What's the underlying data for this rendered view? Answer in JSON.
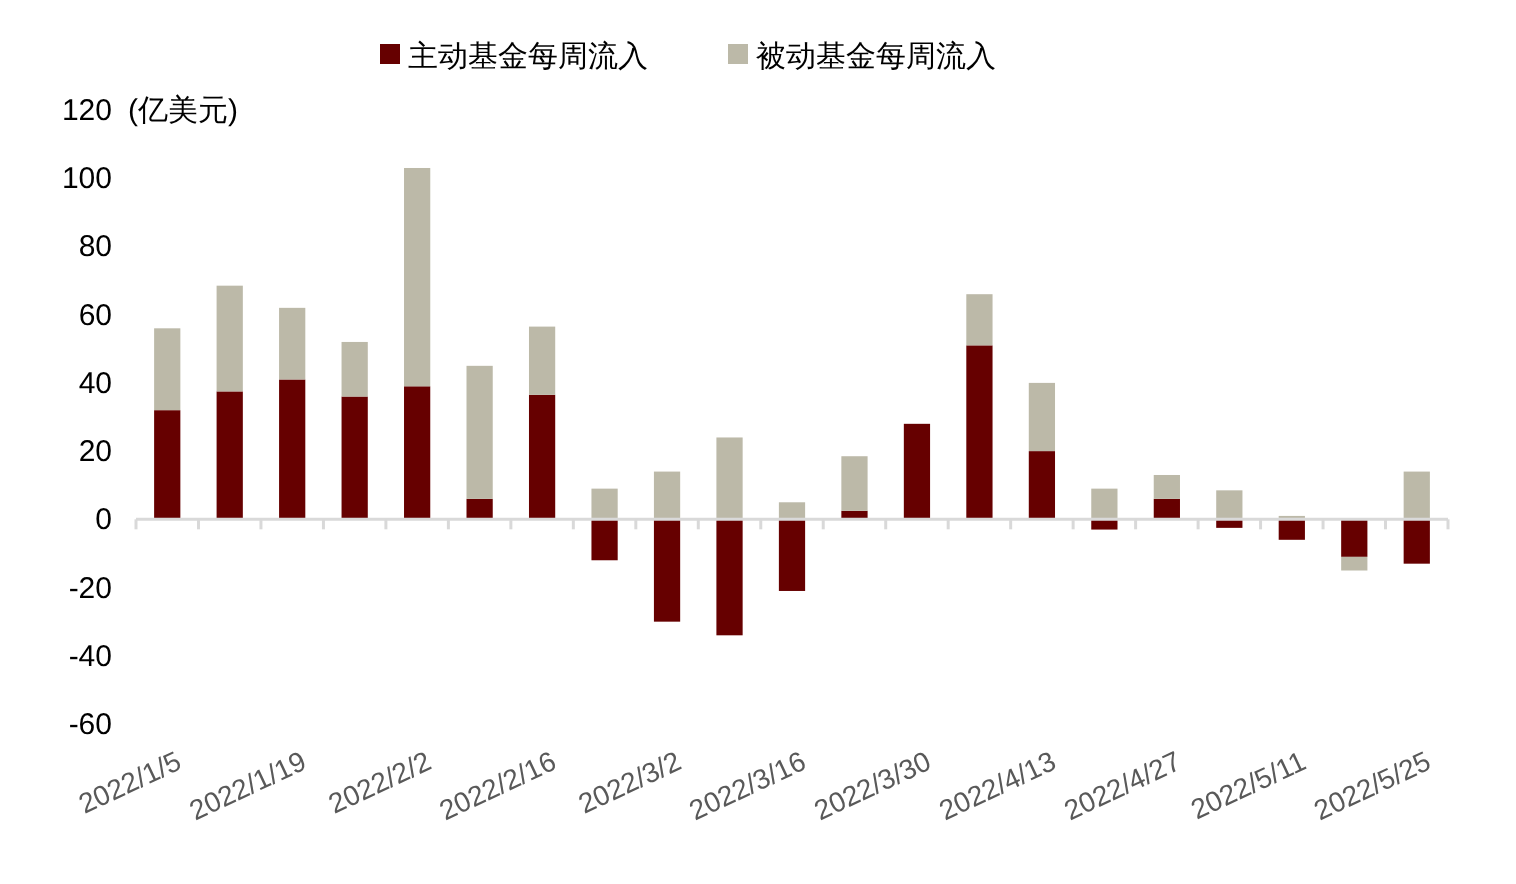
{
  "chart_data": {
    "type": "bar",
    "stacked": true,
    "ylabel": "(亿美元)",
    "legend": "top",
    "categories": [
      "2022/1/5",
      null,
      "2022/1/19",
      null,
      "2022/2/2",
      null,
      "2022/2/16",
      null,
      "2022/3/2",
      null,
      "2022/3/16",
      null,
      "2022/3/30",
      null,
      "2022/4/13",
      null,
      "2022/4/27",
      null,
      "2022/5/11",
      null,
      "2022/5/25"
    ],
    "series": [
      {
        "name": "主动基金每周流入",
        "color": "#660000",
        "values": [
          32,
          37.5,
          41,
          36,
          39,
          6,
          36.5,
          -12,
          -30,
          -34,
          -21,
          2.5,
          28,
          51,
          20,
          -3,
          6,
          -2.5,
          -6,
          -11,
          -13
        ]
      },
      {
        "name": "被动基金每周流入",
        "color": "#bcb9a8",
        "values": [
          24,
          31,
          21,
          16,
          64,
          39,
          20,
          9,
          14,
          24,
          5,
          16,
          0,
          15,
          20,
          9,
          7,
          8.5,
          1,
          -4,
          14
        ]
      }
    ],
    "ylim": [
      -60,
      120
    ],
    "yticks": [
      -60,
      -40,
      -20,
      0,
      20,
      40,
      60,
      80,
      100,
      120
    ]
  }
}
